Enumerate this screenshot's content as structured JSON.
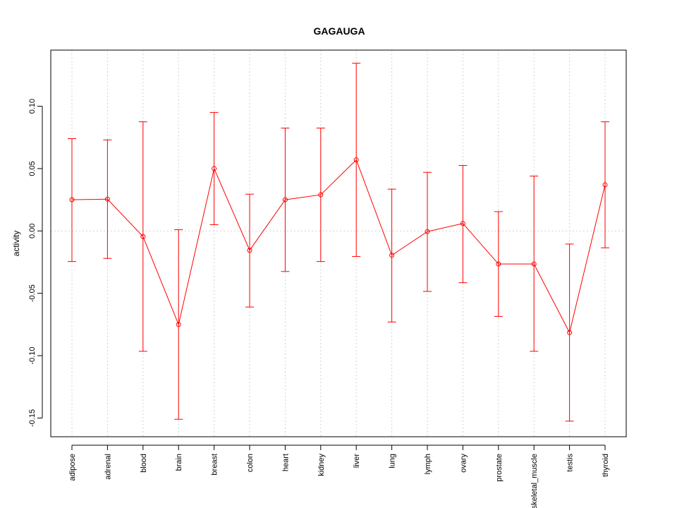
{
  "chart_data": {
    "type": "line",
    "title": "GAGAUGA",
    "xlabel": "",
    "ylabel": "activity",
    "ylim": [
      -0.165,
      0.145
    ],
    "yticks": [
      -0.15,
      -0.1,
      -0.05,
      0.0,
      0.05,
      0.1
    ],
    "ytick_labels": [
      "-0.15",
      "-0.10",
      "-0.05",
      "0.00",
      "0.05",
      "0.10"
    ],
    "categories": [
      "adipose",
      "adrenal",
      "blood",
      "brain",
      "breast",
      "colon",
      "heart",
      "kidney",
      "liver",
      "lung",
      "lymph",
      "ovary",
      "prostate",
      "skeletal_muscle",
      "testis",
      "thyroid"
    ],
    "values": [
      0.025,
      0.0255,
      -0.0045,
      -0.075,
      0.05,
      -0.0155,
      0.025,
      0.029,
      0.057,
      -0.0195,
      -0.0005,
      0.006,
      -0.0265,
      -0.0265,
      -0.0815,
      0.037
    ],
    "upper": [
      0.074,
      0.073,
      0.0875,
      0.001,
      0.095,
      0.0295,
      0.0825,
      0.0825,
      0.1345,
      0.0335,
      0.047,
      0.0525,
      0.0155,
      0.044,
      -0.0105,
      0.0875
    ],
    "lower": [
      -0.0245,
      -0.022,
      -0.0965,
      -0.151,
      0.005,
      -0.061,
      -0.0325,
      -0.0245,
      -0.0205,
      -0.073,
      -0.0485,
      -0.0415,
      -0.0685,
      -0.0965,
      -0.1525,
      -0.0135
    ],
    "grid": true,
    "zero_line": true,
    "colors": {
      "series": "#ff0000",
      "grid": "#d3d3d3",
      "axis": "#000000"
    }
  }
}
